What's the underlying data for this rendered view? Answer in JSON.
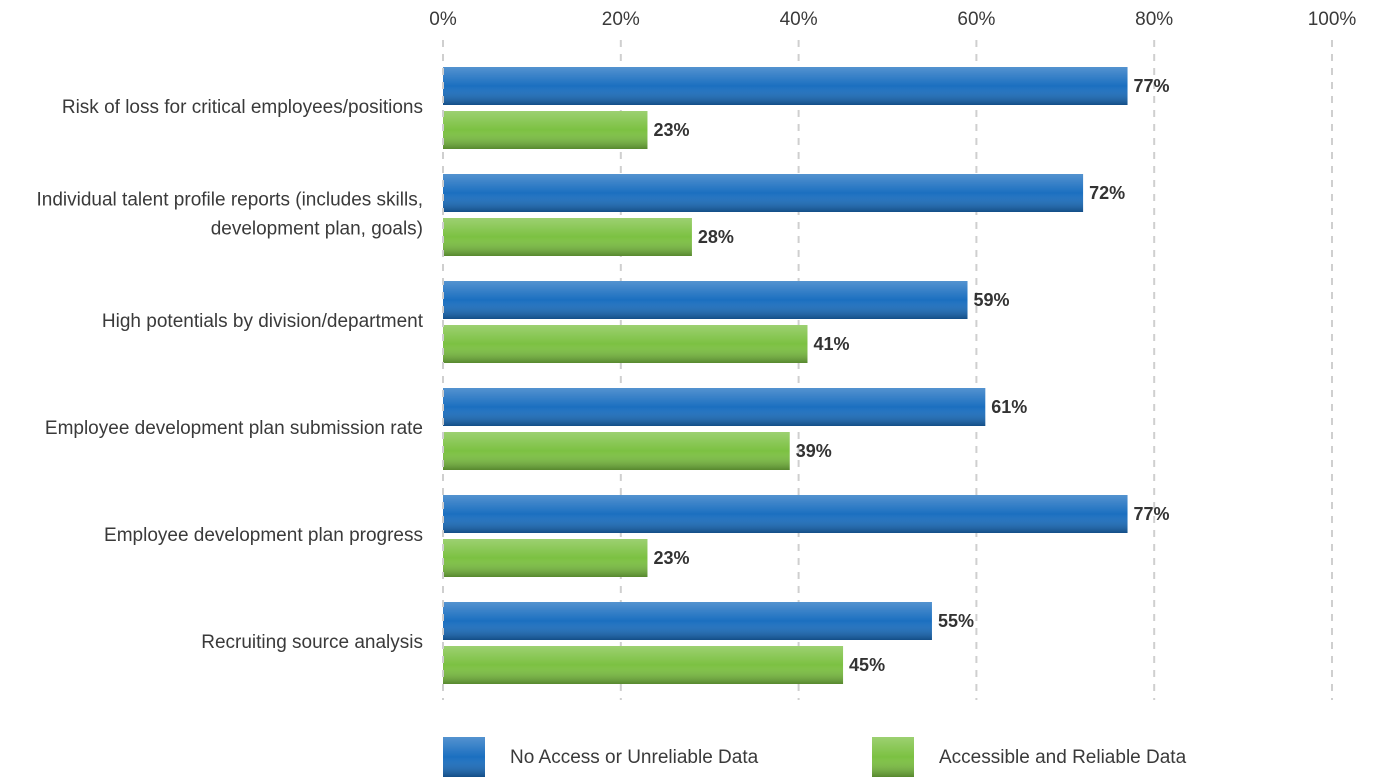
{
  "chart_data": {
    "type": "hbar",
    "categories": [
      "Risk of loss for critical employees/positions",
      "Individual talent profile reports (includes skills, development plan, goals)",
      "High potentials by division/department",
      "Employee development plan submission rate",
      "Employee development plan progress",
      "Recruiting source analysis"
    ],
    "series": [
      {
        "name": "No Access or Unreliable Data",
        "color": "#1b6fc0",
        "values": [
          77,
          72,
          59,
          61,
          77,
          55
        ],
        "value_labels": [
          "77%",
          "72%",
          "59%",
          "61%",
          "77%",
          "55%"
        ]
      },
      {
        "name": "Accessible and Reliable Data",
        "color": "#7cc142",
        "values": [
          23,
          28,
          41,
          39,
          23,
          45
        ],
        "value_labels": [
          "23%",
          "28%",
          "41%",
          "39%",
          "23%",
          "45%"
        ]
      }
    ],
    "xlim": [
      0,
      100
    ],
    "xticks": [
      {
        "value": 0,
        "label": "0%"
      },
      {
        "value": 20,
        "label": "20%"
      },
      {
        "value": 40,
        "label": "40%"
      },
      {
        "value": 60,
        "label": "60%"
      },
      {
        "value": 80,
        "label": "80%"
      },
      {
        "value": 100,
        "label": "100%"
      }
    ],
    "grid": true,
    "legend": "bottom"
  }
}
